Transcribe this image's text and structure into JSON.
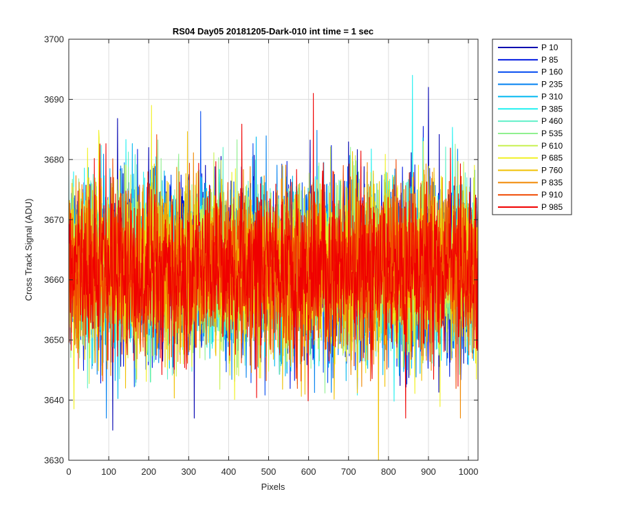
{
  "chart_data": {
    "type": "line",
    "title": "RS04 Day05 20181205-Dark-010 int time = 1 sec",
    "xlabel": "Pixels",
    "ylabel": "Cross Track Signal (ADU)",
    "xlim": [
      0,
      1024
    ],
    "ylim": [
      3630,
      3700
    ],
    "xticks": [
      0,
      100,
      200,
      300,
      400,
      500,
      600,
      700,
      800,
      900,
      1000
    ],
    "yticks": [
      3630,
      3640,
      3650,
      3660,
      3670,
      3680,
      3690,
      3700
    ],
    "grid": true,
    "legend_position": "outside-top-right",
    "signal_mean": 3662,
    "signal_std": 7,
    "series": [
      {
        "name": "P 10",
        "color": "#0000B0"
      },
      {
        "name": "P 85",
        "color": "#0019E0"
      },
      {
        "name": "P 160",
        "color": "#0048F0"
      },
      {
        "name": "P 235",
        "color": "#0080F0"
      },
      {
        "name": "P 310",
        "color": "#00B8F0"
      },
      {
        "name": "P 385",
        "color": "#20F0F0"
      },
      {
        "name": "P 460",
        "color": "#60F0C8"
      },
      {
        "name": "P 535",
        "color": "#90F090"
      },
      {
        "name": "P 610",
        "color": "#C8F050"
      },
      {
        "name": "P 685",
        "color": "#F0F020"
      },
      {
        "name": "P 760",
        "color": "#F0C000"
      },
      {
        "name": "P 835",
        "color": "#F08800"
      },
      {
        "name": "P 910",
        "color": "#F04800"
      },
      {
        "name": "P 985",
        "color": "#F00000"
      }
    ],
    "annotations": [
      {
        "series": "P 10",
        "x": 110,
        "y": 3635
      },
      {
        "series": "P 10",
        "x": 200,
        "y": 3682
      },
      {
        "series": "P 160",
        "x": 330,
        "y": 3688
      },
      {
        "series": "P 385",
        "x": 860,
        "y": 3694
      },
      {
        "series": "P 10",
        "x": 900,
        "y": 3692
      },
      {
        "series": "P 685",
        "x": 207,
        "y": 3689
      },
      {
        "series": "P 985",
        "x": 612,
        "y": 3691
      },
      {
        "series": "P 760",
        "x": 775,
        "y": 3630
      },
      {
        "series": "P 835",
        "x": 980,
        "y": 3637
      }
    ]
  }
}
